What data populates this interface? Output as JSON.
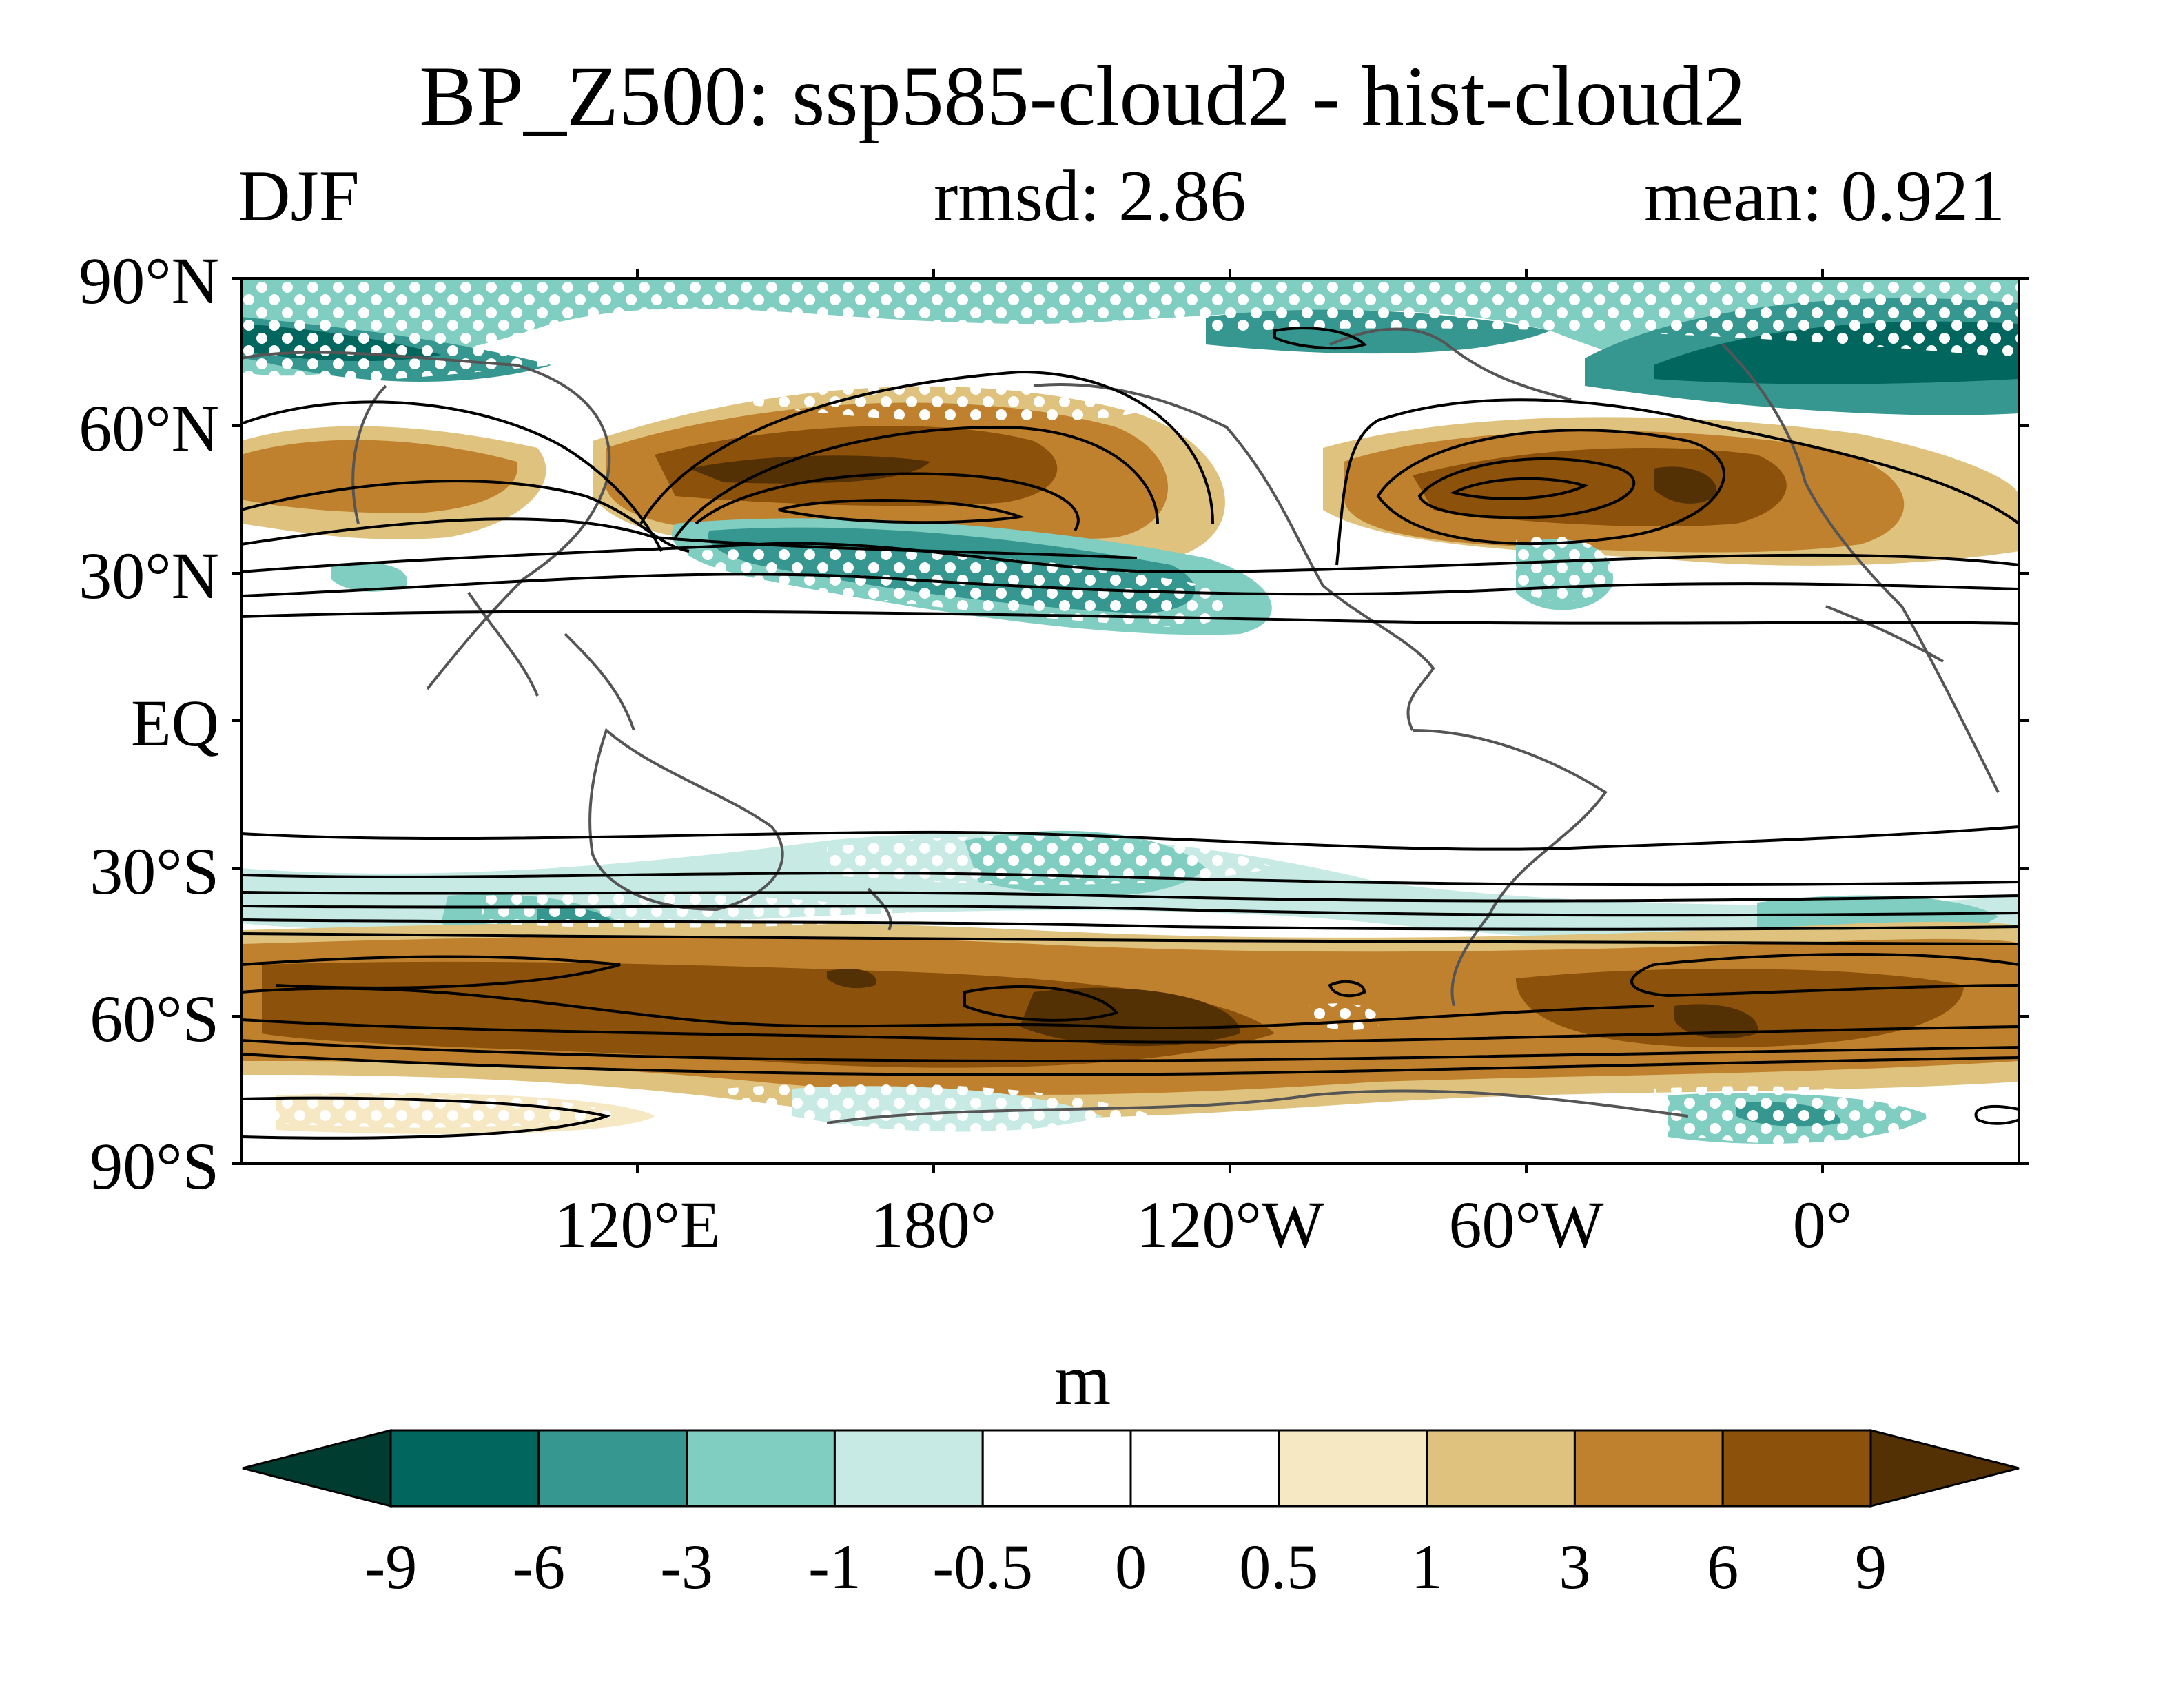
{
  "title": "BP_Z500: ssp585-cloud2 - hist-cloud2",
  "season": "DJF",
  "rmsd": "rmsd: 2.86",
  "mean": "mean: 0.921",
  "units": "m",
  "lat_labels": [
    "90°N",
    "60°N",
    "30°N",
    "EQ",
    "30°S",
    "60°S",
    "90°S"
  ],
  "lon_labels": [
    "120°E",
    "180°",
    "120°W",
    "60°W",
    "0°"
  ],
  "colorbar": {
    "levels": [
      "-9",
      "-6",
      "-3",
      "-1",
      "-0.5",
      "0",
      "0.5",
      "1",
      "3",
      "6",
      "9"
    ],
    "colors": [
      "#003c30",
      "#01665e",
      "#35978f",
      "#80cdc1",
      "#c7eae5",
      "#ffffff",
      "#ffffff",
      "#f6e8c3",
      "#dfc27d",
      "#bf812d",
      "#8c510a",
      "#543005"
    ]
  },
  "map": {
    "projection": "cylindrical equidistant",
    "lat_range": [
      -90,
      90
    ],
    "lon_range": [
      40,
      400
    ],
    "hatching": "white dots (significance)",
    "contours": "black lines (climatology)",
    "coastlines": "gray"
  }
}
